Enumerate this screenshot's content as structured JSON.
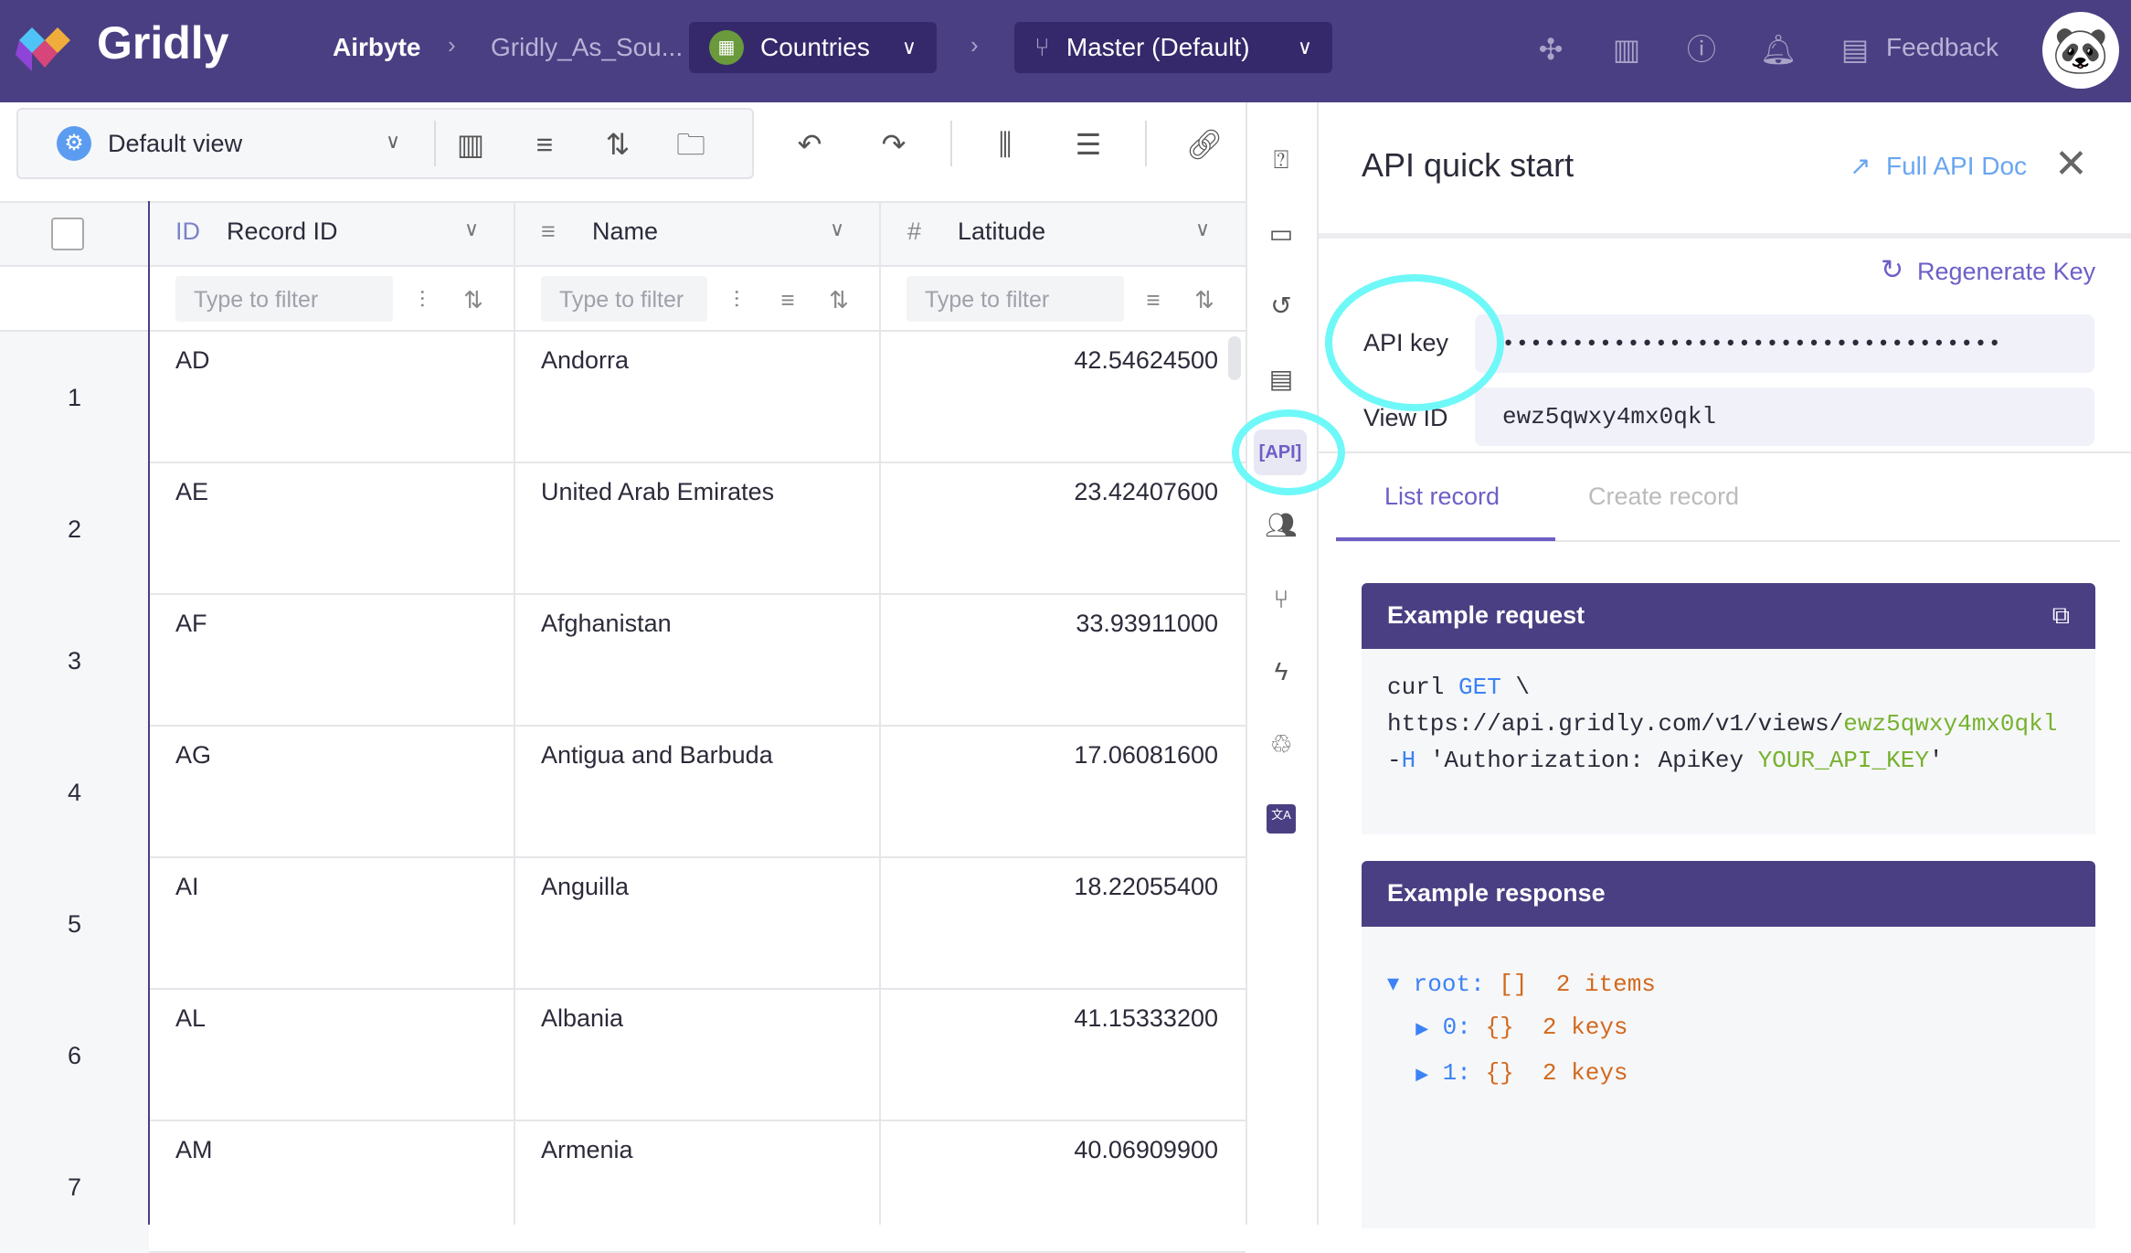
{
  "header": {
    "logo": "Gridly",
    "breadcrumb": [
      "Airbyte",
      "Gridly_As_Sou..."
    ],
    "grid_selector": "Countries",
    "branch_selector": "Master (Default)",
    "feedback": "Feedback",
    "avatar_icon": "panda-avatar",
    "icons": [
      "puzzle-icon",
      "layout-icon",
      "help-icon",
      "bell-icon",
      "feedback-icon"
    ]
  },
  "toolbar": {
    "view": "Default view"
  },
  "grid": {
    "columns": [
      {
        "type": "ID",
        "label": "Record ID"
      },
      {
        "type": "≡",
        "label": "Name"
      },
      {
        "type": "#",
        "label": "Latitude"
      }
    ],
    "filter_placeholder": "Type to filter",
    "rows": [
      {
        "n": "1",
        "id": "AD",
        "name": "Andorra",
        "lat": "42.54624500"
      },
      {
        "n": "2",
        "id": "AE",
        "name": "United Arab Emirates",
        "lat": "23.42407600"
      },
      {
        "n": "3",
        "id": "AF",
        "name": "Afghanistan",
        "lat": "33.93911000"
      },
      {
        "n": "4",
        "id": "AG",
        "name": "Antigua and Barbuda",
        "lat": "17.06081600"
      },
      {
        "n": "5",
        "id": "AI",
        "name": "Anguilla",
        "lat": "18.22055400"
      },
      {
        "n": "6",
        "id": "AL",
        "name": "Albania",
        "lat": "41.15333200"
      },
      {
        "n": "7",
        "id": "AM",
        "name": "Armenia",
        "lat": "40.06909900"
      }
    ]
  },
  "side": {
    "api_label": "[API]"
  },
  "panel": {
    "title": "API quick start",
    "full_doc": "Full API Doc",
    "regenerate": "Regenerate Key",
    "api_key_label": "API key",
    "api_key_value": "••••••••••••••••••••••••••••••••••••",
    "view_id_label": "View ID",
    "view_id_value": "ewz5qwxy4mx0qkl",
    "tabs": [
      "List record",
      "Create record"
    ],
    "request_title": "Example request",
    "req": {
      "l1a": "curl ",
      "l1b": "GET",
      "l1c": " \\",
      "l2a": "https://api.gridly.com/v1/views/",
      "l2b": "ewz5qwxy4mx0qkl",
      "l3a": "-",
      "l3b": "H",
      "l3c": " 'Authorization: ApiKey ",
      "l3d": "YOUR_API_KEY",
      "l3e": "'"
    },
    "response_title": "Example response",
    "resp": {
      "root": "root:",
      "root_val": "[]  2 items",
      "i0": "0:",
      "i1": "1:",
      "item_val": "{}  2 keys"
    }
  },
  "colors": {
    "brand": "#4b3f83",
    "accent": "#6c5fc7",
    "highlight": "#6ff8f8"
  }
}
